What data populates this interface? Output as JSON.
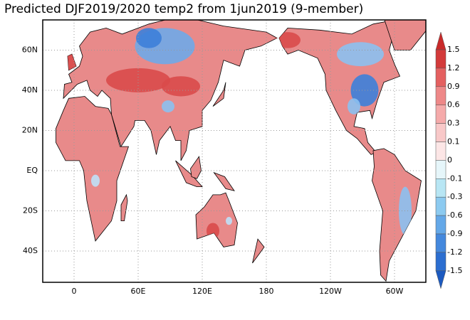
{
  "title": "Predicted DJF2019/2020 temp2 from 1jun2019 (9-member)",
  "lat_labels": [
    "60N",
    "40N",
    "20N",
    "EQ",
    "20S",
    "40S"
  ],
  "lon_labels": [
    "0",
    "60E",
    "120E",
    "180",
    "120W",
    "60W"
  ],
  "colorbar": {
    "labels": [
      "1.5",
      "1.2",
      "0.9",
      "0.6",
      "0.3",
      "0.1",
      "0",
      "-0.1",
      "-0.3",
      "-0.6",
      "-0.9",
      "-1.2",
      "-1.5"
    ]
  }
}
